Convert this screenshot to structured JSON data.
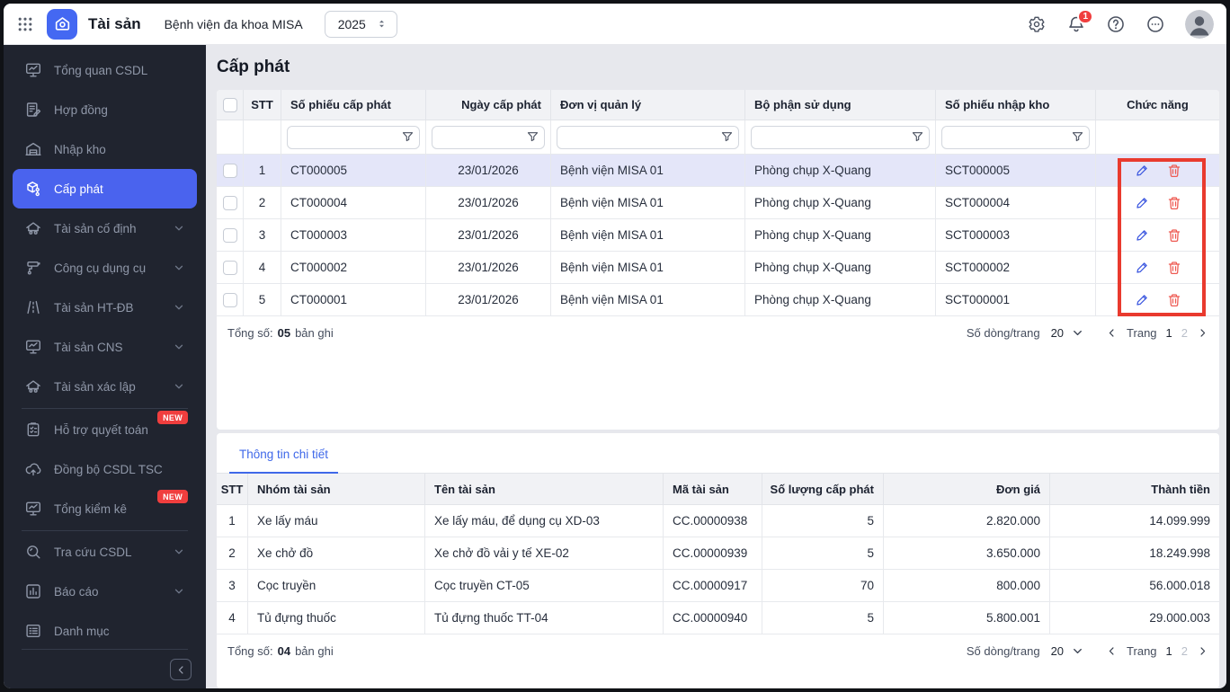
{
  "header": {
    "app_title": "Tài sản",
    "org_name": "Bệnh viện đa khoa MISA",
    "year": "2025",
    "notification_count": "1"
  },
  "sidebar": {
    "items": [
      {
        "id": "tong-quan-csdl",
        "label": "Tổng quan CSDL",
        "icon": "monitor-chart"
      },
      {
        "id": "hop-dong",
        "label": "Hợp đồng",
        "icon": "contract"
      },
      {
        "id": "nhap-kho",
        "label": "Nhập kho",
        "icon": "warehouse"
      },
      {
        "id": "cap-phat",
        "label": "Cấp phát",
        "icon": "cube",
        "active": true
      },
      {
        "id": "tai-san-co-dinh",
        "label": "Tài sản cố định",
        "icon": "home-car",
        "chevron": true
      },
      {
        "id": "cong-cu-dung-cu",
        "label": "Công cụ dụng cụ",
        "icon": "roller",
        "chevron": true
      },
      {
        "id": "tai-san-ht-db",
        "label": "Tài sản HT-ĐB",
        "icon": "road",
        "chevron": true
      },
      {
        "id": "tai-san-cns",
        "label": "Tài sản CNS",
        "icon": "monitor-chart",
        "chevron": true
      },
      {
        "id": "tai-san-xac-lap",
        "label": "Tài sản xác lập",
        "icon": "home-car",
        "chevron": true,
        "divider_after": true
      },
      {
        "id": "ho-tro-quyet-toan",
        "label": "Hỗ trợ quyết toán",
        "icon": "clipboard",
        "badge": "NEW"
      },
      {
        "id": "dong-bo-csdl-tsc",
        "label": "Đồng bộ CSDL TSC",
        "icon": "cloud-up"
      },
      {
        "id": "tong-kiem-ke",
        "label": "Tổng kiểm kê",
        "icon": "monitor-chart",
        "badge": "NEW",
        "divider_after": true
      },
      {
        "id": "tra-cuu-csdl",
        "label": "Tra cứu CSDL",
        "icon": "search",
        "chevron": true
      },
      {
        "id": "bao-cao",
        "label": "Báo cáo",
        "icon": "bar-chart",
        "chevron": true
      },
      {
        "id": "danh-muc",
        "label": "Danh mục",
        "icon": "list"
      }
    ]
  },
  "main": {
    "page_title": "Cấp phát",
    "table": {
      "columns": [
        "STT",
        "Số phiếu cấp phát",
        "Ngày cấp phát",
        "Đơn vị quản lý",
        "Bộ phận sử dụng",
        "Số phiếu nhập kho",
        "Chức năng"
      ],
      "rows": [
        {
          "stt": "1",
          "code": "CT000005",
          "date": "23/01/2026",
          "unit": "Bệnh viện MISA 01",
          "dept": "Phòng chụp X-Quang",
          "receipt": "SCT000005",
          "highlight": true
        },
        {
          "stt": "2",
          "code": "CT000004",
          "date": "23/01/2026",
          "unit": "Bệnh viện MISA 01",
          "dept": "Phòng chụp X-Quang",
          "receipt": "SCT000004"
        },
        {
          "stt": "3",
          "code": "CT000003",
          "date": "23/01/2026",
          "unit": "Bệnh viện MISA 01",
          "dept": "Phòng chụp X-Quang",
          "receipt": "SCT000003"
        },
        {
          "stt": "4",
          "code": "CT000002",
          "date": "23/01/2026",
          "unit": "Bệnh viện MISA 01",
          "dept": "Phòng chụp X-Quang",
          "receipt": "SCT000002"
        },
        {
          "stt": "5",
          "code": "CT000001",
          "date": "23/01/2026",
          "unit": "Bệnh viện MISA 01",
          "dept": "Phòng chụp X-Quang",
          "receipt": "SCT000001"
        }
      ],
      "footer": {
        "total_label": "Tổng số:",
        "total": "05",
        "total_suffix": "bản ghi",
        "per_page_label": "Số dòng/trang",
        "per_page": "20",
        "page_label": "Trang",
        "page_current": "1",
        "page_next": "2"
      }
    },
    "detail": {
      "tab_label": "Thông tin chi tiết",
      "columns": [
        "STT",
        "Nhóm tài sản",
        "Tên tài sản",
        "Mã tài sản",
        "Số lượng cấp phát",
        "Đơn giá",
        "Thành tiền"
      ],
      "rows": [
        {
          "stt": "1",
          "group": "Xe lấy máu",
          "name": "Xe lấy máu, để dụng cụ XD-03",
          "code": "CC.00000938",
          "qty": "5",
          "price": "2.820.000",
          "amount": "14.099.999"
        },
        {
          "stt": "2",
          "group": "Xe chở đồ",
          "name": "Xe chở đồ vải y tế XE-02",
          "code": "CC.00000939",
          "qty": "5",
          "price": "3.650.000",
          "amount": "18.249.998"
        },
        {
          "stt": "3",
          "group": "Cọc truyền",
          "name": "Cọc truyền CT-05",
          "code": "CC.00000917",
          "qty": "70",
          "price": "800.000",
          "amount": "56.000.018"
        },
        {
          "stt": "4",
          "group": "Tủ đựng thuốc",
          "name": "Tủ đựng thuốc TT-04",
          "code": "CC.00000940",
          "qty": "5",
          "price": "5.800.001",
          "amount": "29.000.003"
        }
      ],
      "footer": {
        "total_label": "Tổng số:",
        "total": "04",
        "total_suffix": "bản ghi",
        "per_page_label": "Số dòng/trang",
        "per_page": "20",
        "page_label": "Trang",
        "page_current": "1",
        "page_next": "2"
      }
    }
  },
  "colors": {
    "sidebar_bg": "#20242f",
    "sidebar_active": "#4a63ee",
    "logo_blue": "#4468f2",
    "badge_red": "#f03e3e",
    "annotation_red": "#e93a2e",
    "edit_blue": "#3f5ae0",
    "delete_red": "#ee5a52",
    "tab_blue": "#3f68e9",
    "row_highlight": "#e4e6f9"
  }
}
